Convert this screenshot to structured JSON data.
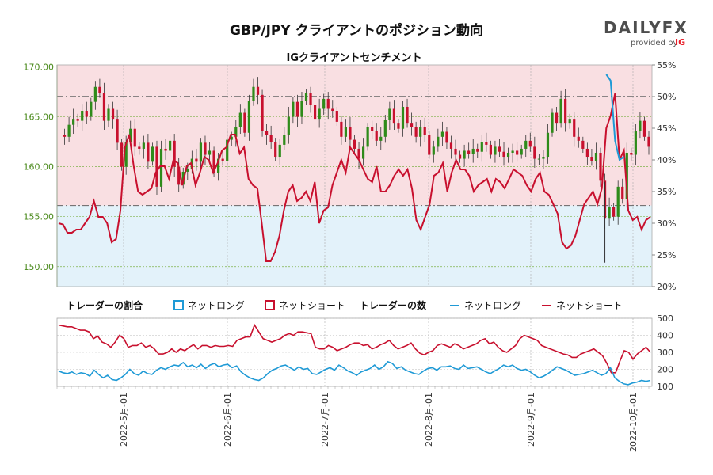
{
  "title": "GBP/JPY クライアントのポジション動向",
  "subtitle": "IGクライアントセンチメント",
  "logo": {
    "text": "DAILYFX",
    "provided_by": "provided by",
    "brand": "IG"
  },
  "colors": {
    "net_long": "#1f9ad6",
    "net_short": "#c8102e",
    "candle_up": "#2e8b1a",
    "candle_down": "#c8102e",
    "band_pink": "#f9dfe2",
    "band_blue": "#e3f2fa"
  },
  "chart_data": [
    {
      "type": "candlestick",
      "name": "price",
      "left_axis": {
        "ticks": [
          "170.00",
          "165.00",
          "160.00",
          "155.00",
          "150.00"
        ],
        "values": [
          170,
          165,
          160,
          155,
          150
        ],
        "ylim": [
          148,
          170.2
        ]
      },
      "right_axis": {
        "ticks": [
          "55%",
          "50%",
          "45%",
          "40%",
          "35%",
          "30%",
          "25%",
          "20%"
        ],
        "values": [
          55,
          50,
          45,
          40,
          35,
          30,
          25,
          20
        ],
        "ylim": [
          20,
          55
        ]
      },
      "reference_lines": {
        "upper_pct": 50,
        "lower_pct": 32.8
      },
      "ohlc_path": [
        163.2,
        163.0,
        164.2,
        164.8,
        164.6,
        165.6,
        165.0,
        166.5,
        168.0,
        167.4,
        164.6,
        165.8,
        164.8,
        162.4,
        160.0,
        162.5,
        163.8,
        162.0,
        161.8,
        162.4,
        160.5,
        162.0,
        158.0,
        161.8,
        161.6,
        162.6,
        160.0,
        158.2,
        159.5,
        159.8,
        160.8,
        160.5,
        162.4,
        161.2,
        161.6,
        159.4,
        160.8,
        160.6,
        162.7,
        163.0,
        164.0,
        165.4,
        163.4,
        166.6,
        168.0,
        167.2,
        163.6,
        163.2,
        162.5,
        161.0,
        162.2,
        163.2,
        165.0,
        166.5,
        165.0,
        166.6,
        167.4,
        166.2,
        164.8,
        165.8,
        166.8,
        165.8,
        165.6,
        164.5,
        163.0,
        164.0,
        162.7,
        161.8,
        160.8,
        162.0,
        164.0,
        163.6,
        162.6,
        163.0,
        164.7,
        165.8,
        164.4,
        163.8,
        166.0,
        164.4,
        164.0,
        163.0,
        164.0,
        163.2,
        161.2,
        162.0,
        163.0,
        163.5,
        162.4,
        161.8,
        161.2,
        160.8,
        161.6,
        161.3,
        161.8,
        161.5,
        162.5,
        162.2,
        161.2,
        162.0,
        161.5,
        161.0,
        161.4,
        161.6,
        161.2,
        161.8,
        162.6,
        162.0,
        160.8,
        160.8,
        161.0,
        163.4,
        165.4,
        164.4,
        166.8,
        164.4,
        164.8,
        163.0,
        162.6,
        161.8,
        161.0,
        160.6,
        161.4,
        158.6,
        154.8,
        156.0,
        155.0,
        158.0,
        156.8,
        161.4,
        161.2,
        163.6,
        164.6,
        163.0,
        162.0
      ],
      "price_range": [
        150.4,
        168.4
      ],
      "net_long_pct_path": [
        41.5,
        41.0,
        42.2,
        43.5,
        42.8,
        44.0,
        44.0,
        44.8,
        46.2,
        45.6,
        44.8,
        44.0,
        42.8,
        39.8,
        37.8,
        40.8,
        42.0,
        40.0,
        40.5,
        41.0,
        40.0,
        40.5,
        38.0,
        40.8,
        40.5,
        41.0,
        39.0,
        38.5,
        39.5,
        40.0,
        41.0,
        40.8,
        42.0,
        40.5,
        41.0,
        39.5,
        40.5,
        40.6,
        41.4,
        42.5,
        43.5,
        45.6,
        43.0,
        46.8,
        47.5,
        46.0,
        43.0,
        43.0,
        42.0,
        40.5,
        42.0,
        42.5,
        44.5,
        46.0,
        44.8,
        46.2,
        46.8,
        45.6,
        44.0,
        45.5,
        46.2,
        45.5,
        45.0,
        44.0,
        42.5,
        43.5,
        42.0,
        41.5,
        40.5,
        42.0,
        43.5,
        43.0,
        42.0,
        42.5,
        44.0,
        45.5,
        44.0,
        43.5,
        45.8,
        44.0,
        43.5,
        42.8,
        43.5,
        42.8,
        41.0,
        41.8,
        42.5,
        43.0,
        42.0,
        41.5,
        41.0,
        40.8,
        41.5,
        41.0,
        41.5,
        41.2,
        42.0,
        41.8,
        41.0,
        41.5,
        41.0,
        40.8,
        41.0,
        41.2,
        40.8,
        41.5,
        42.2,
        41.5,
        40.5,
        40.5,
        41.0,
        43.0,
        45.0,
        44.0,
        46.5,
        44.0,
        44.5,
        43.0,
        42.5,
        41.5,
        41.0,
        40.2,
        41.0,
        39.0,
        53.5,
        52.5,
        43.0,
        40.0,
        40.5,
        40.2,
        40.8,
        41.0,
        41.5,
        40.8,
        41.0
      ],
      "net_short_pct_path": [
        30.0,
        29.8,
        28.5,
        28.5,
        29.0,
        29.0,
        30.0,
        31.0,
        33.5,
        31.0,
        31.0,
        30.0,
        27.0,
        27.5,
        32.0,
        42.0,
        44.0,
        39.0,
        35.0,
        34.5,
        35.0,
        35.5,
        38.0,
        39.0,
        39.0,
        37.0,
        40.0,
        39.5,
        36.0,
        39.0,
        39.5,
        36.0,
        38.0,
        40.5,
        40.0,
        38.0,
        39.5,
        41.5,
        42.0,
        44.0,
        44.0,
        41.0,
        42.0,
        37.0,
        36.0,
        35.5,
        30.0,
        24.0,
        24.0,
        25.5,
        28.0,
        32.0,
        35.0,
        36.0,
        33.5,
        34.0,
        35.0,
        33.5,
        36.5,
        30.0,
        32.0,
        32.5,
        36.0,
        38.0,
        40.0,
        38.0,
        42.0,
        41.0,
        40.0,
        38.5,
        37.0,
        36.5,
        39.0,
        35.0,
        35.0,
        36.0,
        37.5,
        38.5,
        37.5,
        38.5,
        35.5,
        30.5,
        29.0,
        31.0,
        33.0,
        37.5,
        38.0,
        39.5,
        35.0,
        38.0,
        40.0,
        38.5,
        38.5,
        37.5,
        35.0,
        36.0,
        36.5,
        37.0,
        35.0,
        37.0,
        36.5,
        35.5,
        37.0,
        38.5,
        38.0,
        37.5,
        36.0,
        35.0,
        37.0,
        38.0,
        35.0,
        34.5,
        33.0,
        31.5,
        27.0,
        26.0,
        26.5,
        28.0,
        30.5,
        33.0,
        34.0,
        35.0,
        33.0,
        35.5,
        45.0,
        47.0,
        50.5,
        40.0,
        41.5,
        32.0,
        30.5,
        31.0,
        29.0,
        30.5,
        31.0
      ]
    },
    {
      "type": "line",
      "name": "traders",
      "series": [
        {
          "name": "ネットロング",
          "range": [
            110,
            240
          ]
        },
        {
          "name": "ネットショート",
          "range": [
            255,
            480
          ]
        }
      ],
      "right_axis": {
        "ticks": [
          "500",
          "400",
          "300",
          "200",
          "100"
        ],
        "values": [
          500,
          400,
          300,
          200,
          100
        ],
        "ylim": [
          100,
          500
        ]
      },
      "long_path": [
        190,
        180,
        175,
        185,
        170,
        180,
        175,
        160,
        195,
        170,
        150,
        165,
        140,
        135,
        150,
        170,
        200,
        175,
        165,
        190,
        175,
        170,
        195,
        210,
        200,
        215,
        225,
        220,
        240,
        215,
        225,
        210,
        230,
        205,
        225,
        235,
        215,
        225,
        230,
        210,
        220,
        185,
        165,
        150,
        140,
        135,
        150,
        175,
        195,
        205,
        220,
        225,
        210,
        195,
        215,
        200,
        205,
        175,
        170,
        185,
        200,
        210,
        195,
        225,
        210,
        190,
        180,
        165,
        185,
        195,
        205,
        225,
        200,
        215,
        245,
        235,
        205,
        215,
        195,
        185,
        175,
        170,
        190,
        205,
        210,
        195,
        215,
        215,
        220,
        205,
        200,
        225,
        205,
        210,
        215,
        200,
        185,
        175,
        190,
        205,
        225,
        215,
        225,
        205,
        195,
        200,
        185,
        165,
        150,
        160,
        175,
        195,
        215,
        205,
        195,
        180,
        165,
        170,
        175,
        185,
        195,
        180,
        165,
        175,
        210,
        150,
        130,
        115,
        110,
        120,
        125,
        135,
        130,
        135
      ],
      "short_path": [
        460,
        455,
        450,
        450,
        440,
        430,
        430,
        420,
        380,
        395,
        360,
        350,
        330,
        360,
        400,
        380,
        330,
        340,
        340,
        355,
        330,
        340,
        320,
        290,
        290,
        300,
        320,
        300,
        320,
        310,
        330,
        345,
        320,
        340,
        340,
        330,
        340,
        335,
        335,
        340,
        335,
        370,
        380,
        390,
        390,
        460,
        420,
        380,
        370,
        360,
        370,
        380,
        400,
        410,
        400,
        420,
        420,
        415,
        410,
        330,
        320,
        320,
        340,
        330,
        310,
        320,
        330,
        345,
        355,
        355,
        340,
        345,
        320,
        330,
        345,
        355,
        370,
        340,
        320,
        330,
        340,
        355,
        320,
        295,
        285,
        300,
        310,
        340,
        350,
        340,
        330,
        350,
        340,
        320,
        330,
        340,
        350,
        370,
        380,
        350,
        360,
        330,
        310,
        300,
        320,
        340,
        380,
        400,
        390,
        380,
        370,
        340,
        330,
        320,
        310,
        300,
        290,
        285,
        270,
        270,
        290,
        300,
        310,
        320,
        300,
        280,
        235,
        180,
        180,
        250,
        310,
        300,
        260,
        290,
        310,
        330,
        300
      ]
    }
  ],
  "legend": {
    "ratio_title": "トレーダーの割合",
    "count_title": "トレーダーの数",
    "net_long": "ネットロング",
    "net_short": "ネットショート"
  },
  "x_axis": {
    "ticks": [
      "2022-5月-01",
      "2022-6月-01",
      "2022-7月-01",
      "2022-8月-01",
      "2022-9月-01",
      "2022-10月-01"
    ]
  }
}
